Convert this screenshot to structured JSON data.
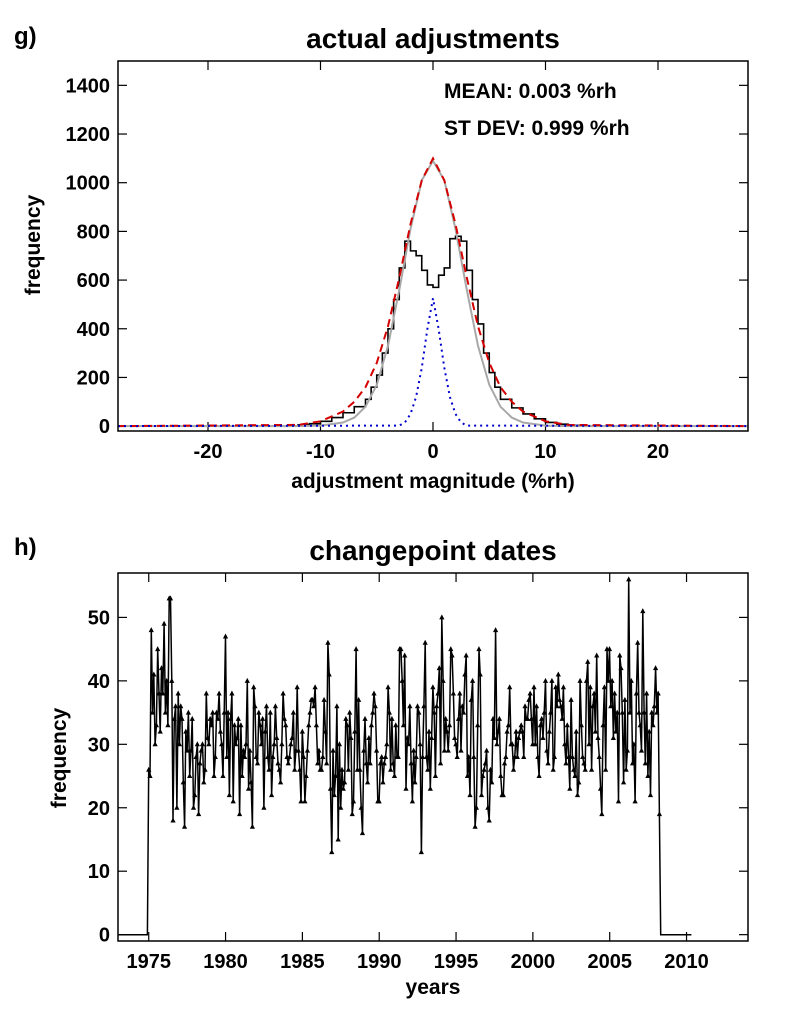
{
  "chart_data": [
    {
      "panel_label": "g)",
      "type": "line",
      "title": "actual adjustments",
      "xlabel": "adjustment magnitude (%rh)",
      "ylabel": "frequency",
      "xlim": [
        -28,
        28
      ],
      "ylim": [
        -20,
        1500
      ],
      "xticks": [
        -20,
        -10,
        0,
        10,
        20
      ],
      "yticks": [
        0,
        200,
        400,
        600,
        800,
        1000,
        1200,
        1400
      ],
      "annotations": [
        "MEAN:  0.003 %rh",
        "ST DEV:  0.999 %rh"
      ],
      "series": [
        {
          "style": "step",
          "color": "#000000",
          "x": [
            -12,
            -11,
            -10,
            -9,
            -8,
            -7,
            -6,
            -5.5,
            -5,
            -4.5,
            -4,
            -3.5,
            -3,
            -2.5,
            -2,
            -1.5,
            -1,
            -0.5,
            0,
            0.5,
            1,
            1.5,
            2,
            2.5,
            3,
            3.5,
            4,
            4.5,
            5,
            5.5,
            6,
            7,
            8,
            9,
            10,
            11,
            12
          ],
          "values": [
            5,
            10,
            20,
            35,
            55,
            80,
            110,
            160,
            210,
            300,
            400,
            520,
            650,
            760,
            720,
            700,
            640,
            580,
            570,
            620,
            650,
            770,
            780,
            760,
            640,
            520,
            420,
            300,
            220,
            160,
            110,
            75,
            50,
            30,
            15,
            8,
            3
          ]
        },
        {
          "style": "solid",
          "color": "#a8a8a8",
          "x": [
            -12,
            -10,
            -8,
            -7,
            -6,
            -5,
            -4,
            -3,
            -2,
            -1,
            0,
            1,
            2,
            3,
            4,
            5,
            6,
            7,
            8,
            10,
            12
          ],
          "values": [
            0,
            2,
            15,
            35,
            80,
            170,
            330,
            560,
            810,
            1010,
            1090,
            1010,
            810,
            560,
            330,
            170,
            80,
            35,
            15,
            2,
            0
          ]
        },
        {
          "style": "dashed",
          "color": "#d40000",
          "x": [
            -12,
            -10,
            -8,
            -7,
            -6,
            -5,
            -4,
            -3,
            -2,
            -1,
            0,
            1,
            2,
            3,
            4,
            5,
            6,
            7,
            8,
            10,
            12
          ],
          "values": [
            5,
            20,
            60,
            100,
            160,
            260,
            410,
            610,
            830,
            1010,
            1100,
            1010,
            830,
            610,
            410,
            260,
            160,
            100,
            60,
            20,
            5
          ]
        },
        {
          "style": "dotted",
          "color": "#0000cc",
          "x": [
            -28,
            -3,
            -2.5,
            -2,
            -1.5,
            -1,
            -0.5,
            0,
            0.5,
            1,
            1.5,
            2,
            2.5,
            3,
            28
          ],
          "values": [
            0,
            2,
            15,
            50,
            120,
            240,
            400,
            525,
            400,
            240,
            120,
            50,
            15,
            2,
            0
          ]
        }
      ]
    },
    {
      "panel_label": "h)",
      "type": "line",
      "title": "changepoint dates",
      "xlabel": "years",
      "ylabel": "frequency",
      "xlim": [
        1973,
        2014
      ],
      "ylim": [
        -1,
        57
      ],
      "xticks": [
        1975,
        1980,
        1985,
        1990,
        1995,
        2000,
        2005,
        2010
      ],
      "yticks": [
        0,
        10,
        20,
        30,
        40,
        50
      ],
      "series": [
        {
          "style": "line-with-triangle-markers",
          "color": "#000000",
          "x_start": 1973,
          "x_step": 0.0833,
          "values": [
            0,
            0,
            0,
            0,
            0,
            0,
            0,
            0,
            0,
            0,
            0,
            0,
            0,
            0,
            0,
            0,
            0,
            0,
            0,
            0,
            0,
            0,
            0,
            0,
            26,
            25,
            48,
            35,
            41,
            30,
            33,
            45,
            38,
            32,
            42,
            38,
            49,
            35,
            40,
            33,
            53,
            53,
            40,
            18,
            34,
            36,
            20,
            38,
            30,
            36,
            34,
            24,
            17,
            32,
            29,
            35,
            25,
            29,
            34,
            20,
            22,
            28,
            30,
            19,
            27,
            29,
            30,
            24,
            26,
            38,
            31,
            30,
            34,
            33,
            35,
            25,
            28,
            35,
            34,
            38,
            32,
            30,
            25,
            35,
            47,
            28,
            35,
            22,
            34,
            38,
            21,
            33,
            30,
            31,
            34,
            19,
            33,
            25,
            29,
            28,
            30,
            40,
            23,
            29,
            24,
            17,
            39,
            36,
            28,
            27,
            35,
            33,
            30,
            34,
            20,
            32,
            36,
            28,
            26,
            35,
            22,
            28,
            30,
            36,
            31,
            27,
            26,
            24,
            30,
            38,
            34,
            33,
            28,
            27,
            28,
            30,
            31,
            35,
            26,
            29,
            39,
            29,
            26,
            21,
            32,
            28,
            21,
            25,
            29,
            33,
            35,
            37,
            37,
            36,
            39,
            33,
            27,
            29,
            26,
            26,
            28,
            37,
            32,
            27,
            46,
            41,
            23,
            13,
            29,
            22,
            25,
            36,
            15,
            30,
            20,
            26,
            23,
            24,
            34,
            33,
            26,
            35,
            31,
            19,
            21,
            32,
            45,
            26,
            37,
            26,
            20,
            16,
            29,
            34,
            27,
            24,
            31,
            27,
            33,
            35,
            38,
            36,
            29,
            21,
            21,
            27,
            28,
            24,
            27,
            28,
            30,
            39,
            35,
            26,
            34,
            27,
            25,
            33,
            28,
            28,
            45,
            45,
            40,
            33,
            44,
            23,
            31,
            30,
            36,
            27,
            21,
            29,
            24,
            28,
            36,
            35,
            30,
            13,
            28,
            36,
            46,
            28,
            26,
            32,
            23,
            31,
            39,
            35,
            25,
            36,
            38,
            42,
            27,
            50,
            40,
            29,
            34,
            32,
            29,
            33,
            45,
            44,
            38,
            31,
            30,
            28,
            34,
            38,
            29,
            36,
            35,
            41,
            44,
            25,
            28,
            22,
            37,
            40,
            28,
            17,
            20,
            33,
            45,
            41,
            22,
            25,
            26,
            27,
            29,
            20,
            18,
            26,
            24,
            34,
            31,
            48,
            30,
            32,
            34,
            25,
            22,
            22,
            27,
            28,
            32,
            33,
            39,
            30,
            30,
            26,
            28,
            32,
            28,
            31,
            32,
            33,
            32,
            28,
            36,
            34,
            34,
            37,
            38,
            34,
            30,
            39,
            30,
            36,
            28,
            25,
            33,
            34,
            31,
            35,
            40,
            29,
            27,
            32,
            35,
            40,
            26,
            28,
            39,
            36,
            41,
            37,
            36,
            34,
            39,
            30,
            27,
            33,
            28,
            23,
            37,
            28,
            26,
            25,
            32,
            22,
            24,
            40,
            33,
            28,
            27,
            26,
            40,
            43,
            30,
            39,
            26,
            36,
            38,
            32,
            44,
            31,
            28,
            23,
            19,
            33,
            39,
            26,
            45,
            40,
            45,
            36,
            40,
            31,
            38,
            32,
            35,
            21,
            44,
            42,
            35,
            24,
            37,
            26,
            29,
            56,
            35,
            40,
            27,
            30,
            21,
            38,
            46,
            35,
            33,
            29,
            51,
            35,
            27,
            38,
            25,
            32,
            22,
            35,
            33,
            36,
            42,
            35,
            38,
            19,
            0,
            0,
            0,
            0,
            0,
            0,
            0,
            0,
            0,
            0,
            0,
            0,
            0,
            0,
            0,
            0,
            0,
            0,
            0,
            0,
            0,
            0,
            0,
            0,
            0
          ]
        }
      ]
    }
  ]
}
